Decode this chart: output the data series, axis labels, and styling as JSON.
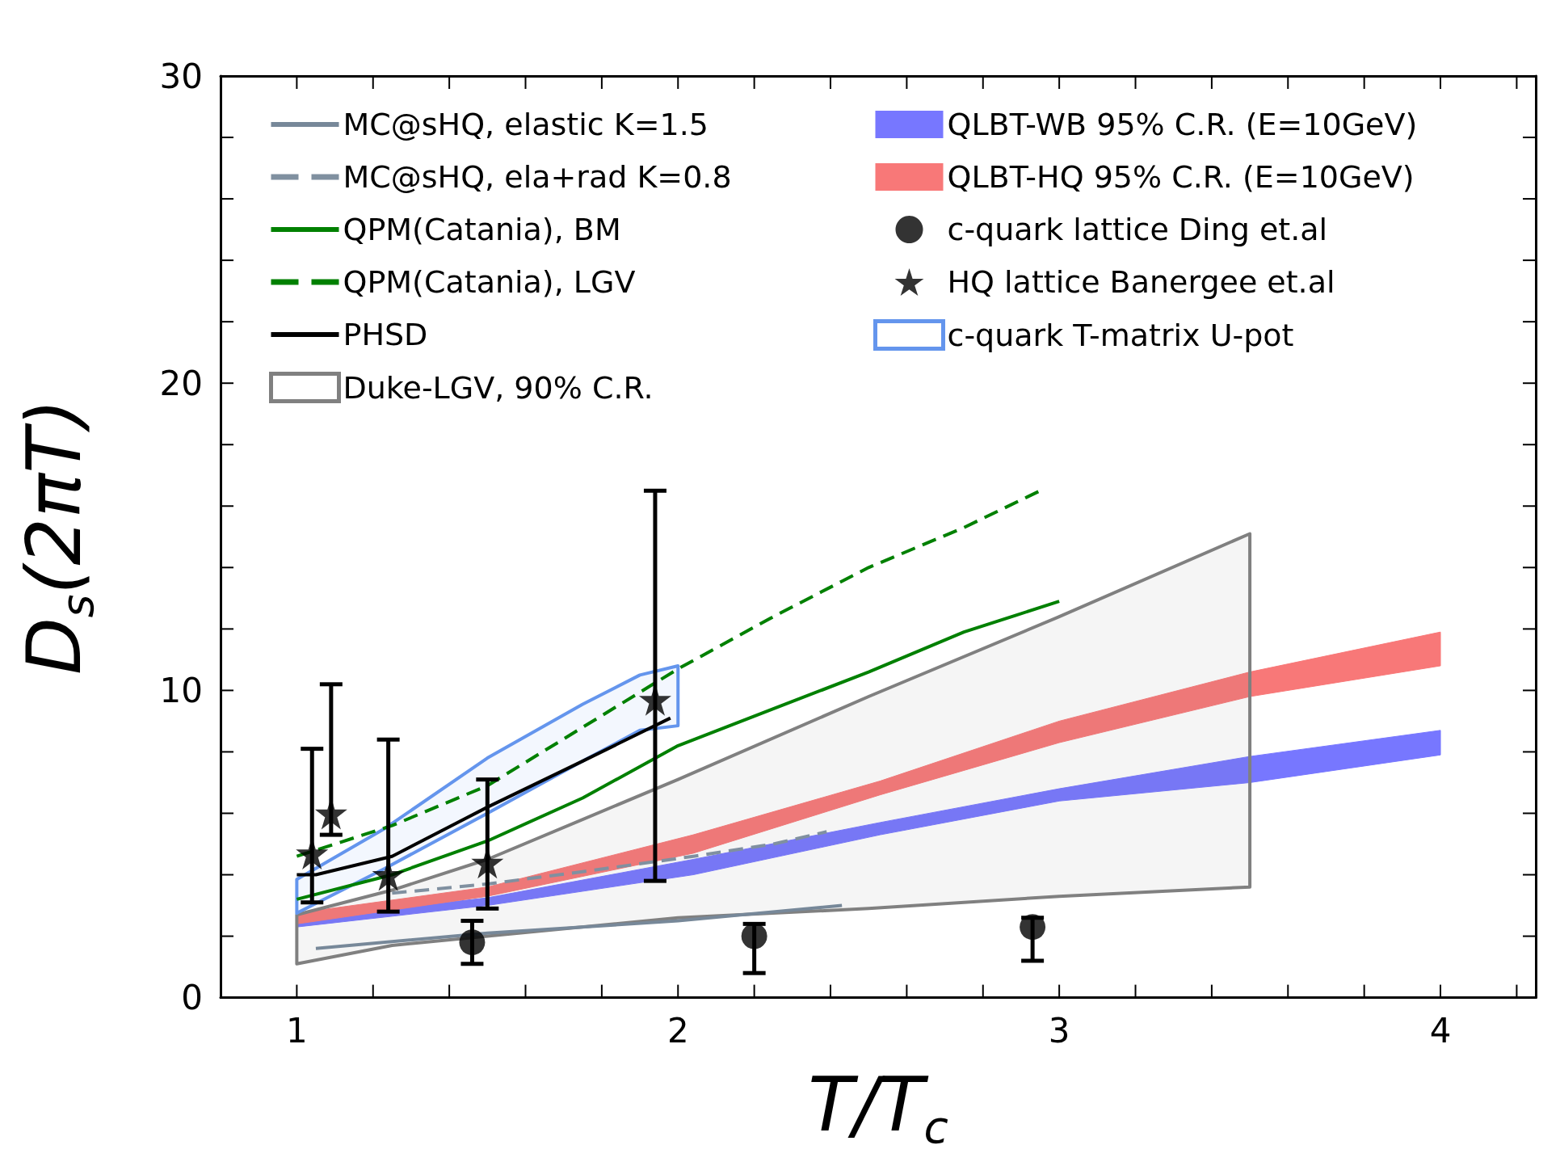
{
  "chart_data": {
    "type": "line",
    "xlabel": "T/T$_{c}$",
    "ylabel": "D$_{s}$(2πT)",
    "xlim": [
      0.8,
      4.25
    ],
    "ylim": [
      0,
      30
    ],
    "xticks": [
      {
        "value": 0.8,
        "label": null
      },
      1,
      {
        "value": 1.2,
        "label": null
      },
      {
        "value": 1.4,
        "label": null
      },
      {
        "value": 1.6,
        "label": null
      },
      {
        "value": 1.8,
        "label": null
      },
      2,
      {
        "value": 2.2,
        "label": null
      },
      {
        "value": 2.4,
        "label": null
      },
      {
        "value": 2.6,
        "label": null
      },
      {
        "value": 2.8,
        "label": null
      },
      3,
      {
        "value": 3.2,
        "label": null
      },
      {
        "value": 3.4,
        "label": null
      },
      {
        "value": 3.6,
        "label": null
      },
      {
        "value": 3.8,
        "label": null
      },
      4,
      {
        "value": 4.2,
        "label": null
      }
    ],
    "yticks": [
      0,
      {
        "value": 2,
        "label": null
      },
      {
        "value": 4,
        "label": null
      },
      {
        "value": 6,
        "label": null
      },
      {
        "value": 8,
        "label": null
      },
      10,
      {
        "value": 12,
        "label": null
      },
      {
        "value": 14,
        "label": null
      },
      {
        "value": 16,
        "label": null
      },
      {
        "value": 18,
        "label": null
      },
      20,
      {
        "value": 22,
        "label": null
      },
      {
        "value": 24,
        "label": null
      },
      {
        "value": 26,
        "label": null
      },
      {
        "value": 28,
        "label": null
      },
      30
    ],
    "legend": "top",
    "series": [
      {
        "name": "MC@sHQ, elastic K=1.5",
        "color": "#778899",
        "line_style": "solid",
        "x": [
          1.05,
          1.5,
          2.0,
          2.43
        ],
        "values": [
          1.6,
          2.1,
          2.5,
          3.0
        ]
      },
      {
        "name": "MC@sHQ, ela+rad K=0.8",
        "color": "#8090a0",
        "line_style": "dashed",
        "x": [
          1.25,
          1.5,
          1.75,
          2.04,
          2.25,
          2.39
        ],
        "values": [
          3.4,
          3.7,
          4.1,
          4.6,
          5.0,
          5.4
        ]
      },
      {
        "name": "QPM(Catania), BM",
        "color": "#008000",
        "line_style": "solid",
        "x": [
          1.0,
          1.25,
          1.5,
          1.75,
          2.0,
          2.25,
          2.5,
          2.75,
          3.0
        ],
        "values": [
          3.2,
          4.0,
          5.1,
          6.5,
          8.2,
          9.4,
          10.6,
          11.9,
          12.9
        ]
      },
      {
        "name": "QPM(Catania), LGV",
        "color": "#008000",
        "line_style": "dashed",
        "x": [
          1.0,
          1.25,
          1.5,
          1.75,
          2.0,
          2.25,
          2.5,
          2.75,
          2.95
        ],
        "values": [
          4.6,
          5.6,
          6.9,
          8.8,
          10.7,
          12.4,
          14.0,
          15.3,
          16.5
        ]
      },
      {
        "name": "PHSD",
        "color": "#000000",
        "line_style": "solid",
        "x": [
          1.0,
          1.05,
          1.25,
          1.5,
          1.75,
          1.98
        ],
        "values": [
          4.0,
          4.0,
          4.6,
          6.2,
          7.7,
          9.1
        ]
      },
      {
        "name": "Duke-LGV, 90% C.R.",
        "type": "line",
        "color": "#808080",
        "line_style": "solid",
        "x": [
          1.0,
          1.25,
          1.5,
          2.0,
          2.5,
          3.0,
          3.5
        ],
        "values": [
          null,
          null,
          null,
          null,
          null,
          null,
          null
        ],
        "lower": [
          1.1,
          1.7,
          2.0,
          2.6,
          2.9,
          3.3,
          3.6
        ],
        "upper": [
          2.7,
          3.5,
          4.5,
          7.1,
          9.8,
          12.4,
          15.1
        ]
      },
      {
        "name": "QLBT-WB 95% C.R. (E=10GeV)",
        "type": "area",
        "color": "#7777ff",
        "x": [
          1.0,
          1.5,
          2.04,
          2.53,
          3.0,
          3.5,
          4.0
        ],
        "values": [
          null,
          null,
          null,
          null,
          null,
          null,
          null
        ],
        "lower": [
          2.3,
          3.0,
          4.0,
          5.3,
          6.4,
          7.0,
          7.9
        ],
        "upper": [
          2.55,
          3.25,
          4.5,
          5.7,
          6.8,
          7.85,
          8.7
        ]
      },
      {
        "name": "QLBT-HQ 95% C.R. (E=10GeV)",
        "type": "area",
        "color": "#f87878",
        "x": [
          1.0,
          1.5,
          2.04,
          2.53,
          3.0,
          3.5,
          4.0
        ],
        "values": [
          null,
          null,
          null,
          null,
          null,
          null,
          null
        ],
        "lower": [
          2.4,
          3.3,
          4.7,
          6.6,
          8.3,
          9.8,
          10.8
        ],
        "upper": [
          2.75,
          3.6,
          5.3,
          7.05,
          9.0,
          10.6,
          11.9
        ]
      },
      {
        "name": "c-quark lattice Ding et.al",
        "type": "scatter",
        "color": "#000000",
        "marker": "circle",
        "x": [
          1.46,
          2.2,
          2.93
        ],
        "values": [
          1.8,
          2.0,
          2.3
        ],
        "errors": [
          [
            1.1,
            2.5
          ],
          [
            0.8,
            2.4
          ],
          [
            1.2,
            2.6
          ]
        ]
      },
      {
        "name": "HQ lattice Banergee et.al",
        "type": "scatter",
        "color": "#000000",
        "marker": "star",
        "x": [
          1.04,
          1.09,
          1.24,
          1.5,
          1.94
        ],
        "values": [
          4.7,
          6.0,
          4.0,
          4.4,
          9.7
        ],
        "errors": [
          [
            3.1,
            8.1
          ],
          [
            5.3,
            10.2
          ],
          [
            2.8,
            8.4
          ],
          [
            2.9,
            7.1
          ],
          [
            3.8,
            16.5
          ]
        ]
      },
      {
        "name": "c-quark T-matrix U-pot",
        "type": "line",
        "color": "#6495ed",
        "line_style": "solid",
        "x": [
          1.0,
          1.23,
          1.5,
          1.75,
          1.9,
          2.0
        ],
        "values": [
          null,
          null,
          null,
          null,
          null,
          null
        ],
        "lower": [
          2.75,
          4.2,
          6.0,
          7.7,
          8.7,
          8.85
        ],
        "upper": [
          3.85,
          5.5,
          7.8,
          9.55,
          10.5,
          10.8
        ]
      }
    ]
  }
}
